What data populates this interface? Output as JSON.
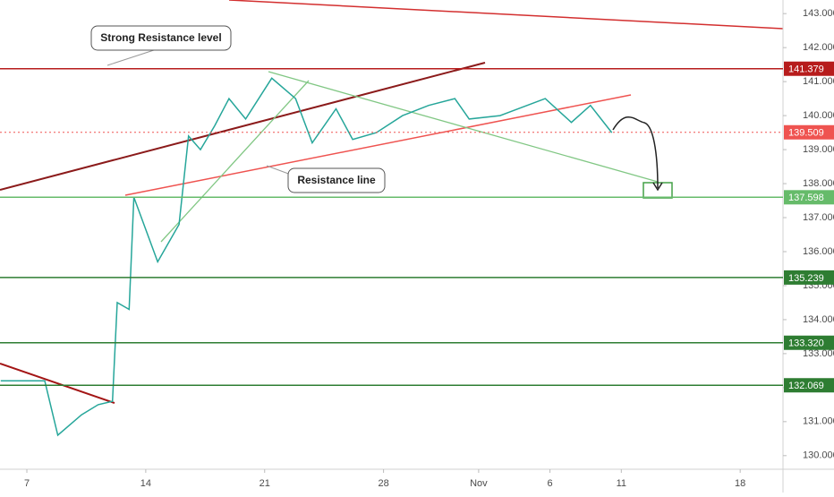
{
  "chart_data": {
    "type": "line",
    "x": [
      -1.1,
      0.75,
      1.3,
      2.3,
      3,
      3.6,
      3.8,
      4.3,
      4.5,
      5.5,
      6.4,
      6.8,
      7.3,
      7.9,
      8.5,
      9.2,
      10.3,
      11.3,
      12,
      13,
      13.7,
      14.7,
      15.8,
      16.9,
      18,
      18.6,
      19.9,
      21.8,
      22.9,
      23.7,
      24.6
    ],
    "series": [
      {
        "color": "#26a69a",
        "values": [
          132.2,
          132.2,
          130.6,
          131.2,
          131.5,
          131.6,
          134.5,
          134.3,
          137.6,
          135.7,
          136.8,
          139.4,
          139.0,
          139.7,
          140.5,
          139.9,
          141.1,
          140.5,
          139.2,
          140.2,
          139.3,
          139.5,
          140.0,
          140.3,
          140.5,
          139.9,
          140.0,
          140.5,
          139.8,
          140.3,
          139.5
        ]
      }
    ],
    "xlim": [
      -1.13,
      31.8
    ],
    "ylim": [
      129.6,
      143.4
    ],
    "xticks": [
      {
        "value": 0,
        "label": "7"
      },
      {
        "value": 5,
        "label": "14"
      },
      {
        "value": 10,
        "label": "21"
      },
      {
        "value": 15,
        "label": "28"
      },
      {
        "value": 19,
        "label": "Nov"
      },
      {
        "value": 22,
        "label": "6"
      },
      {
        "value": 25,
        "label": "11"
      },
      {
        "value": 30,
        "label": "18"
      }
    ],
    "yticks": [
      {
        "value": 130,
        "label": "130.000"
      },
      {
        "value": 131,
        "label": "131.000"
      },
      {
        "value": 132,
        "label": "132.000"
      },
      {
        "value": 133,
        "label": "133.000"
      },
      {
        "value": 134,
        "label": "134.000"
      },
      {
        "value": 135,
        "label": "135.000"
      },
      {
        "value": 136,
        "label": "136.000"
      },
      {
        "value": 137,
        "label": "137.000"
      },
      {
        "value": 138,
        "label": "138.000"
      },
      {
        "value": 139,
        "label": "139.000"
      },
      {
        "value": 140,
        "label": "140.000"
      },
      {
        "value": 141,
        "label": "141.000"
      },
      {
        "value": 142,
        "label": "142.000"
      },
      {
        "value": 143,
        "label": "143.000"
      }
    ],
    "levels": [
      {
        "value": 141.379,
        "color": "#b71c1c"
      },
      {
        "value": 139.509,
        "color": "#ef5350"
      },
      {
        "value": 137.598,
        "color": "#66bb6a"
      },
      {
        "value": 135.239,
        "color": "#2e7d32"
      },
      {
        "value": 133.32,
        "label": "133.320",
        "color": "#2e7d32"
      },
      {
        "value": 132.069,
        "color": "#2e7d32"
      }
    ],
    "annotations": [
      "Strong Resistance level",
      "Resistance line"
    ]
  }
}
